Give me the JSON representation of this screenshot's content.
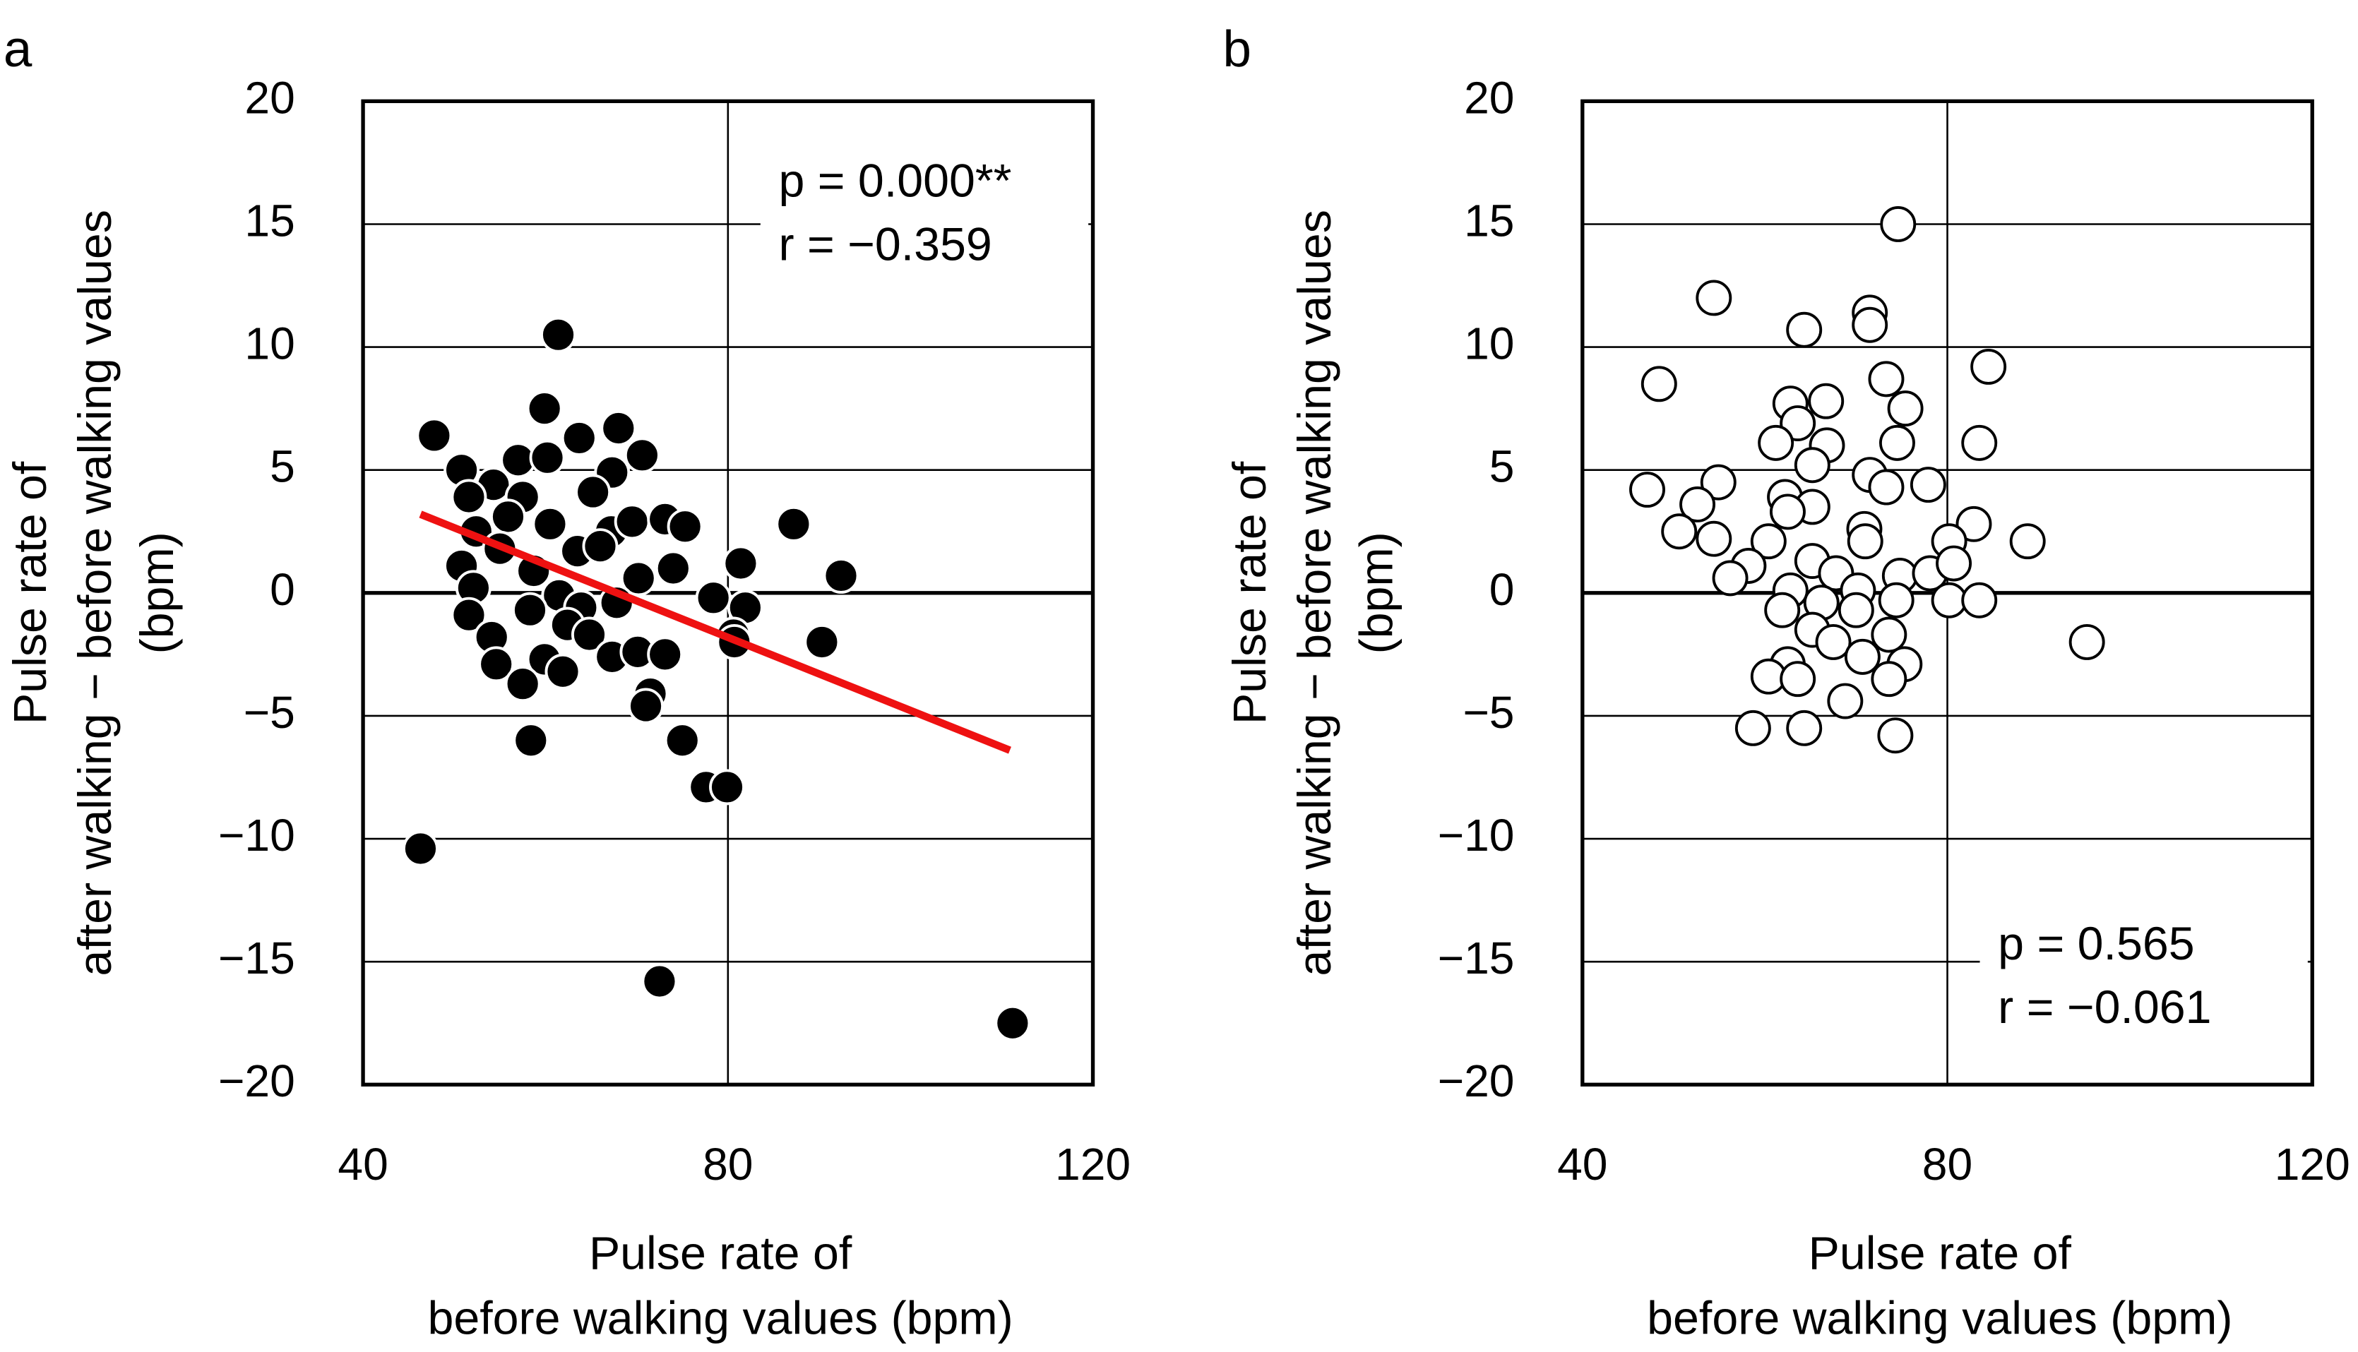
{
  "chart_data": [
    {
      "type": "scatter",
      "panel": "a",
      "ylabel": [
        "Pulse rate of",
        "after walking − before walking values",
        "(bpm)"
      ],
      "xlabel": [
        "Pulse rate of",
        "before walking values (bpm)"
      ],
      "annotation": [
        "p = 0.000**",
        "r  = −0.359"
      ],
      "annotation_loc": "upper right",
      "marker_fill": "#000000",
      "marker_edge": "#ffffff",
      "grid": true,
      "xlim": [
        40,
        120
      ],
      "xticks": [
        40,
        80,
        120
      ],
      "ylim": [
        -20,
        20
      ],
      "yticks": [
        {
          "value": -20,
          "label": "−20"
        },
        {
          "value": -15,
          "label": "−15"
        },
        {
          "value": -10,
          "label": "−10"
        },
        {
          "value": -5,
          "label": "−5"
        },
        0,
        5,
        10,
        15,
        20
      ],
      "x": [
        47.8,
        46.3,
        61.4,
        59.9,
        68.0,
        70.6,
        50.8,
        54.3,
        63.7,
        57.0,
        60.2,
        67.3,
        65.2,
        51.6,
        57.5,
        55.9,
        60.5,
        67.2,
        69.5,
        73.1,
        75.3,
        87.2,
        92.4,
        81.4,
        70.2,
        74.0,
        52.4,
        50.8,
        55.0,
        63.5,
        58.7,
        52.1,
        61.5,
        67.8,
        63.9,
        58.3,
        51.6,
        78.4,
        81.9,
        80.6,
        80.7,
        54.1,
        62.4,
        64.8,
        59.9,
        54.6,
        61.9,
        57.5,
        67.3,
        70.1,
        73.1,
        71.5,
        71.0,
        75.0,
        58.4,
        77.6,
        79.9,
        72.5,
        111.2,
        90.3,
        66.0
      ],
      "y": [
        6.4,
        -10.4,
        10.5,
        7.5,
        6.7,
        5.6,
        5.0,
        4.4,
        6.3,
        5.4,
        5.5,
        4.9,
        4.1,
        3.9,
        3.9,
        3.1,
        2.8,
        2.5,
        2.9,
        3.0,
        2.7,
        2.8,
        0.7,
        1.2,
        0.6,
        1.0,
        2.5,
        1.1,
        1.8,
        1.7,
        0.9,
        0.2,
        -0.1,
        -0.4,
        -0.6,
        -0.7,
        -0.9,
        -0.2,
        -0.6,
        -1.7,
        -2.0,
        -1.8,
        -1.3,
        -1.7,
        -2.7,
        -2.9,
        -3.2,
        -3.7,
        -2.6,
        -2.4,
        -2.5,
        -4.1,
        -4.6,
        -6.0,
        -6.0,
        -7.9,
        -7.9,
        -15.8,
        -17.5,
        -2.0,
        1.9
      ],
      "trendline": {
        "x": [
          46.3,
          110.9
        ],
        "y": [
          3.2,
          -6.4
        ],
        "color": "#ee1111"
      }
    },
    {
      "type": "scatter",
      "panel": "b",
      "ylabel": [
        "Pulse rate of",
        "after walking − before walking values",
        "(bpm)"
      ],
      "xlabel": [
        "Pulse rate of",
        "before walking values (bpm)"
      ],
      "annotation": [
        "p = 0.565",
        "r  = −0.061"
      ],
      "annotation_loc": "lower right",
      "marker_fill": "#ffffff",
      "marker_edge": "#000000",
      "grid": true,
      "xlim": [
        40,
        120
      ],
      "xticks": [
        40,
        80,
        120
      ],
      "ylim": [
        -20,
        20
      ],
      "yticks": [
        {
          "value": -20,
          "label": "−20"
        },
        {
          "value": -15,
          "label": "−15"
        },
        {
          "value": -10,
          "label": "−10"
        },
        {
          "value": -5,
          "label": "−5"
        },
        0,
        5,
        10,
        15,
        20
      ],
      "x": [
        74.6,
        54.4,
        71.5,
        71.5,
        64.3,
        48.4,
        73.3,
        84.5,
        75.4,
        66.7,
        62.8,
        63.6,
        61.2,
        74.5,
        83.5,
        66.8,
        65.2,
        71.5,
        73.3,
        77.9,
        54.9,
        47.1,
        52.6,
        62.2,
        65.2,
        62.5,
        70.9,
        82.9,
        50.6,
        54.4,
        60.4,
        71.0,
        88.8,
        80.2,
        65.2,
        58.2,
        56.2,
        67.8,
        74.8,
        78.1,
        80.7,
        62.8,
        70.2,
        66.2,
        74.4,
        80.2,
        83.5,
        61.9,
        70.0,
        65.2,
        73.6,
        95.3,
        67.5,
        70.7,
        75.3,
        62.5,
        60.4,
        63.6,
        73.6,
        68.8,
        58.7,
        64.3,
        74.3
      ],
      "y": [
        15.0,
        12.0,
        11.4,
        10.9,
        10.7,
        8.5,
        8.7,
        9.2,
        7.5,
        7.8,
        7.7,
        6.9,
        6.1,
        6.1,
        6.1,
        6.0,
        5.2,
        4.8,
        4.3,
        4.4,
        4.5,
        4.2,
        3.6,
        3.9,
        3.5,
        3.3,
        2.6,
        2.8,
        2.5,
        2.2,
        2.1,
        2.1,
        2.1,
        2.1,
        1.3,
        1.1,
        0.6,
        0.8,
        0.7,
        0.8,
        1.2,
        0.1,
        0.1,
        -0.4,
        -0.3,
        -0.3,
        -0.3,
        -0.7,
        -0.7,
        -1.5,
        -1.7,
        -2.0,
        -2.0,
        -2.6,
        -2.9,
        -2.9,
        -3.4,
        -3.5,
        -3.5,
        -4.4,
        -5.5,
        -5.5,
        -5.8
      ]
    }
  ]
}
